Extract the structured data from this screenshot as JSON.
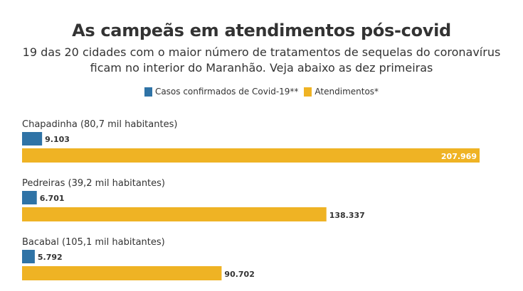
{
  "colors": {
    "cases": "#2f73a6",
    "attendances": "#efb324",
    "text": "#333333",
    "value_inside": "#ffffff"
  },
  "chart_data": {
    "type": "bar",
    "orientation": "horizontal",
    "title": "As campeãs em atendimentos pós-covid",
    "subtitle": "19 das 20 cidades com o maior número de tratamentos de sequelas do coronavírus ficam no interior do Maranhão. Veja abaixo as dez primeiras",
    "categories": [
      "Chapadinha (80,7 mil habitantes)",
      "Pedreiras (39,2 mil habitantes)",
      "Bacabal (105,1 mil habitantes)"
    ],
    "series": [
      {
        "name": "Casos confirmados de Covid-19**",
        "values": [
          9103,
          6701,
          5792
        ],
        "labels": [
          "9.103",
          "6.701",
          "5.792"
        ]
      },
      {
        "name": "Atendimentos*",
        "values": [
          207969,
          138337,
          90702
        ],
        "labels": [
          "207.969",
          "138.337",
          "90.702"
        ]
      }
    ],
    "xlim": [
      0,
      207969
    ],
    "legend": "top-center",
    "grid": false
  }
}
